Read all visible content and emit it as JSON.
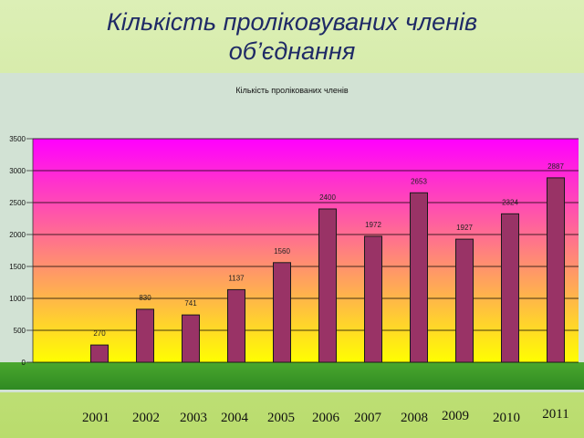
{
  "slide": {
    "title_line1": "Кількість проліковуваних членів",
    "title_line2": "об’єднання"
  },
  "chart_data": {
    "type": "bar",
    "title": "Кількість пролікованих членів",
    "xlabel": "",
    "ylabel": "",
    "categories": [
      "2001",
      "2002",
      "2003",
      "2004",
      "2005",
      "2006",
      "2007",
      "2008",
      "2009",
      "2010",
      "2011"
    ],
    "values": [
      270,
      830,
      741,
      1137,
      1560,
      2400,
      1972,
      2653,
      1927,
      2324,
      2887
    ],
    "ylim": [
      0,
      3500
    ],
    "yticks": [
      0,
      500,
      1000,
      1500,
      2000,
      2500,
      3000,
      3500
    ],
    "grid": true,
    "legend": "none",
    "colors": {
      "bar": "#993366",
      "bar_edge": "#1a1a1a",
      "wall_top": "#ff00ff",
      "wall_bottom": "#ffff00",
      "floor": "#2f8a22",
      "grid": "#000000"
    }
  }
}
